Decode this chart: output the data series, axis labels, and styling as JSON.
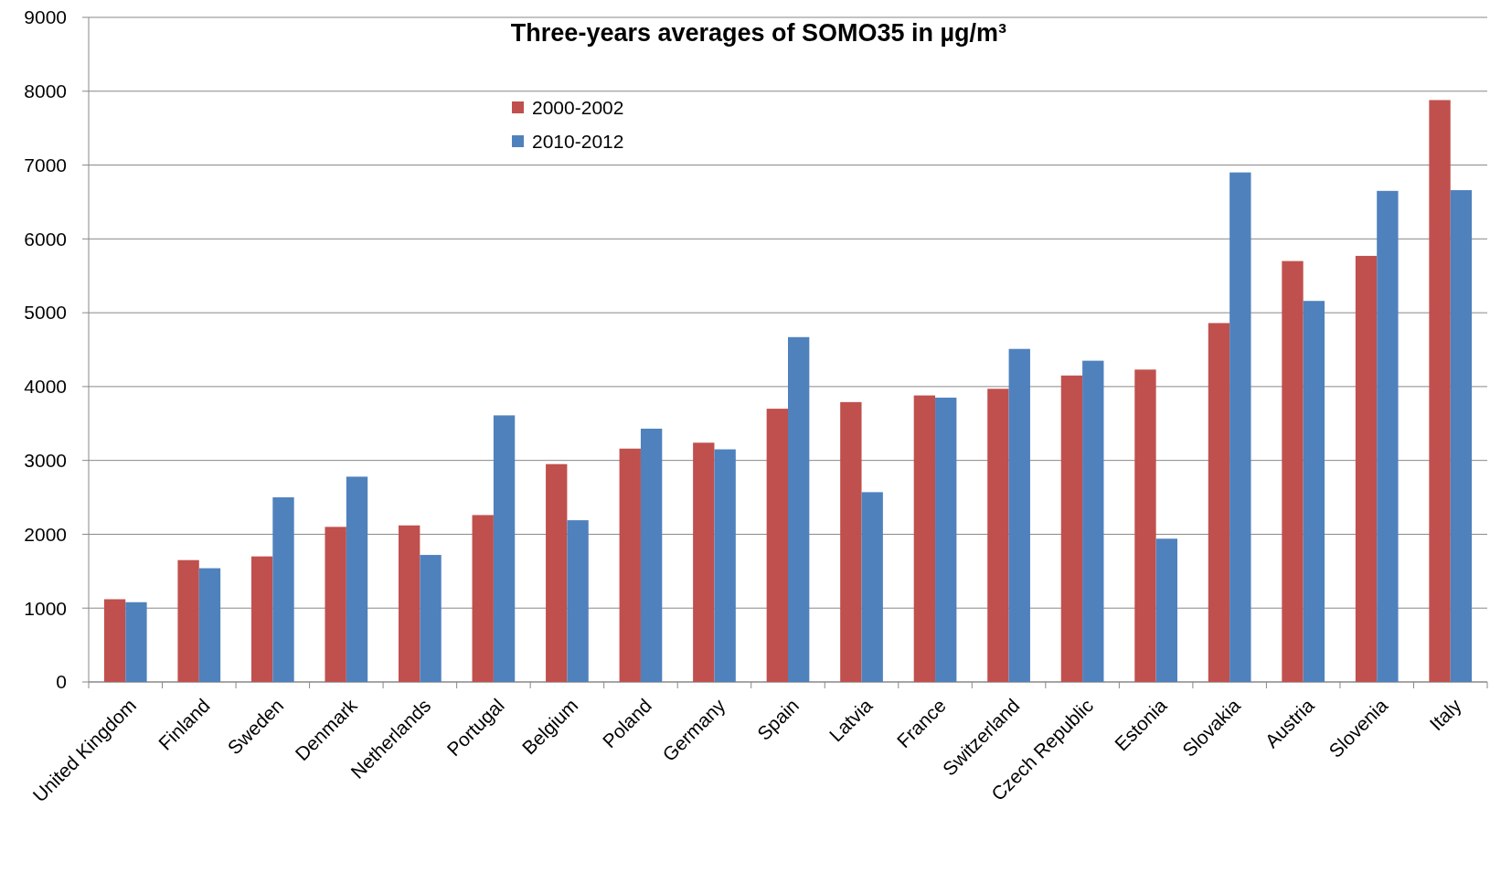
{
  "chart_data": {
    "type": "bar",
    "title": "Three-years averages of SOMO35 in µg/m³",
    "categories": [
      "United Kingdom",
      "Finland",
      "Sweden",
      "Denmark",
      "Netherlands",
      "Portugal",
      "Belgium",
      "Poland",
      "Germany",
      "Spain",
      "Latvia",
      "France",
      "Switzerland",
      "Czech Republic",
      "Estonia",
      "Slovakia",
      "Austria",
      "Slovenia",
      "Italy"
    ],
    "series": [
      {
        "name": "2000-2002",
        "color": "#c0504d",
        "values": [
          1120,
          1650,
          1700,
          2100,
          2120,
          2260,
          2950,
          3160,
          3240,
          3700,
          3790,
          3880,
          3970,
          4150,
          4230,
          4860,
          5700,
          5770,
          7880
        ]
      },
      {
        "name": "2010-2012",
        "color": "#4f81bd",
        "values": [
          1080,
          1540,
          2500,
          2780,
          1720,
          3610,
          2190,
          3430,
          3150,
          4670,
          2570,
          3850,
          4510,
          4350,
          1940,
          6900,
          5160,
          6650,
          6660
        ]
      }
    ],
    "ylim": [
      0,
      9000
    ],
    "yticks": [
      0,
      1000,
      2000,
      3000,
      4000,
      5000,
      6000,
      7000,
      8000,
      9000
    ],
    "grid": "y",
    "legend": "top left"
  }
}
